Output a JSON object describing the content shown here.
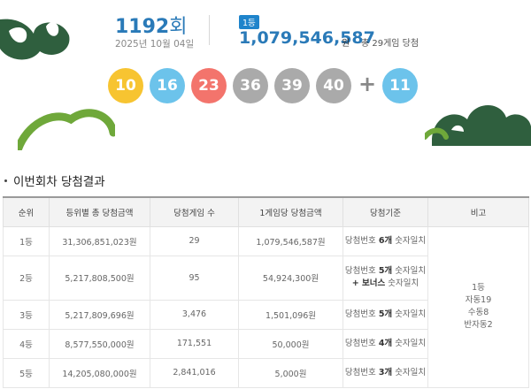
{
  "draw": {
    "round": "1192",
    "round_suffix": "회",
    "date": "2025년 10월 04일"
  },
  "first_prize": {
    "badge": "1등",
    "amount": "1,079,546,587",
    "unit": "원",
    "note": "총 29게임 당첨"
  },
  "balls": [
    {
      "number": "10",
      "color": "#f7c431"
    },
    {
      "number": "16",
      "color": "#6cc3eb"
    },
    {
      "number": "23",
      "color": "#f3746c"
    },
    {
      "number": "36",
      "color": "#aaaaaa"
    },
    {
      "number": "39",
      "color": "#aaaaaa"
    },
    {
      "number": "40",
      "color": "#aaaaaa"
    }
  ],
  "plus": "+",
  "bonus_ball": {
    "number": "11",
    "color": "#6cc3eb"
  },
  "section_title": "이번회차 당첨결과",
  "table": {
    "headers": [
      "순위",
      "등위별 총 당첨금액",
      "당첨게임 수",
      "1게임당 당첨금액",
      "당첨기준",
      "비고"
    ],
    "rows": [
      {
        "rank": "1등",
        "total": "31,306,851,023원",
        "games": "29",
        "per_game": "1,079,546,587원",
        "crit_pre": "당첨번호 ",
        "crit_bold": "6개",
        "crit_post": " 숫자일치",
        "crit_line2": ""
      },
      {
        "rank": "2등",
        "total": "5,217,808,500원",
        "games": "95",
        "per_game": "54,924,300원",
        "crit_pre": "당첨번호 ",
        "crit_bold": "5개",
        "crit_post": " 숫자일치",
        "crit_line2_bold": "+ 보너스",
        "crit_line2": " 숫자일치"
      },
      {
        "rank": "3등",
        "total": "5,217,809,696원",
        "games": "3,476",
        "per_game": "1,501,096원",
        "crit_pre": "당첨번호 ",
        "crit_bold": "5개",
        "crit_post": " 숫자일치",
        "crit_line2": ""
      },
      {
        "rank": "4등",
        "total": "8,577,550,000원",
        "games": "171,551",
        "per_game": "50,000원",
        "crit_pre": "당첨번호 ",
        "crit_bold": "4개",
        "crit_post": " 숫자일치",
        "crit_line2": ""
      },
      {
        "rank": "5등",
        "total": "14,205,080,000원",
        "games": "2,841,016",
        "per_game": "5,000원",
        "crit_pre": "당첨번호 ",
        "crit_bold": "3개",
        "crit_post": " 숫자일치",
        "crit_line2": ""
      }
    ],
    "note_lines": [
      "1등",
      "자동19",
      "수동8",
      "반자동2"
    ]
  },
  "colors": {
    "accent_blue": "#2a7ab8",
    "badge_blue": "#1f84cb",
    "deco_green": "#2f5f3e",
    "deco_lime": "#6fa83a"
  }
}
